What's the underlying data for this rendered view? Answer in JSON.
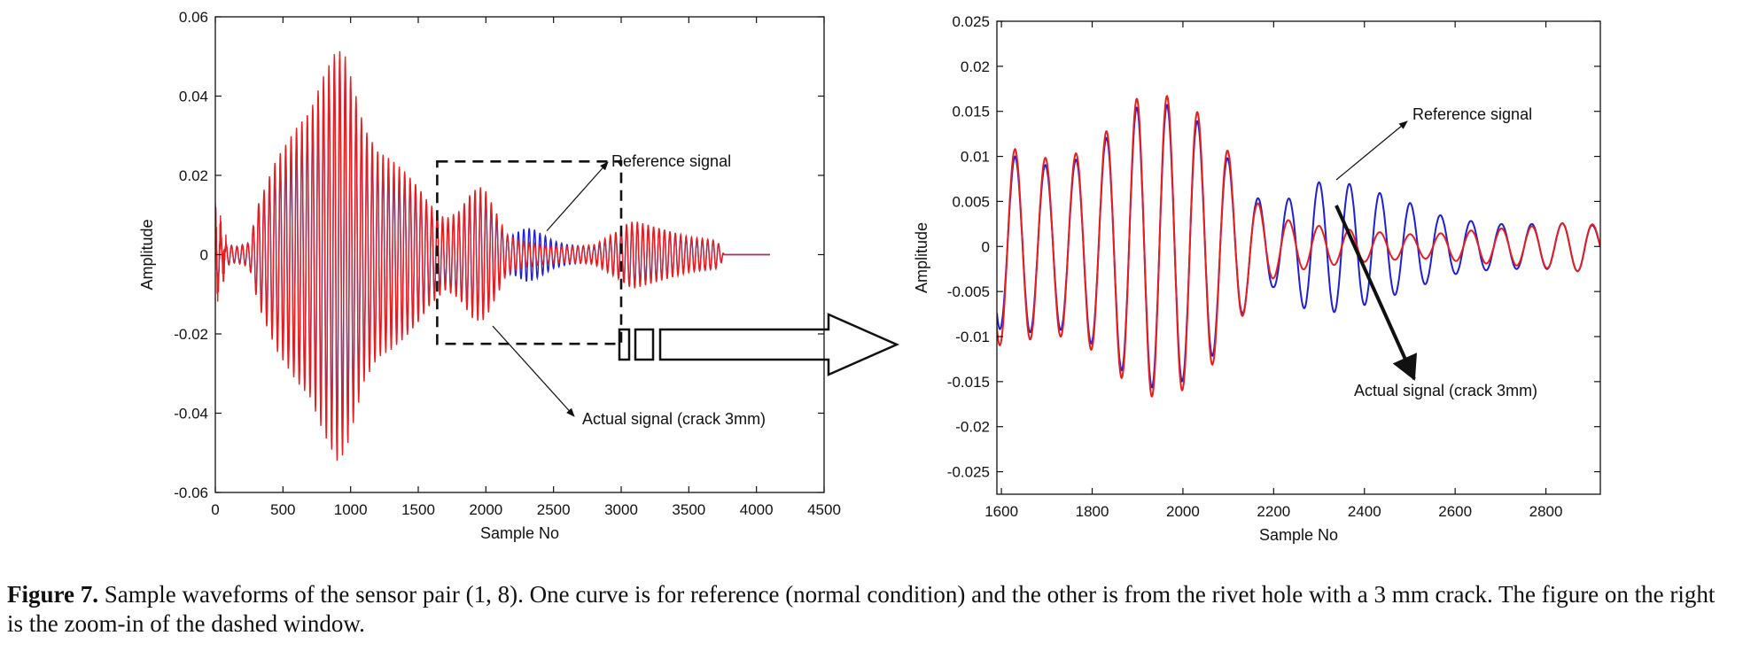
{
  "chart_data": [
    {
      "type": "line",
      "panel": "left",
      "title": "",
      "xlabel": "Sample No",
      "ylabel": "Amplitude",
      "xlim": [
        0,
        4500
      ],
      "ylim": [
        -0.06,
        0.06
      ],
      "x_ticks": [
        0,
        500,
        1000,
        1500,
        2000,
        2500,
        3000,
        3500,
        4000,
        4500
      ],
      "x_tick_labels": [
        "0",
        "500",
        "1000",
        "1500",
        "2000",
        "2500",
        "3000",
        "3500",
        "4000",
        "4500"
      ],
      "y_ticks": [
        -0.06,
        -0.04,
        -0.02,
        0,
        0.02,
        0.04,
        0.06
      ],
      "y_tick_labels": [
        "-0.06",
        "-0.04",
        "-0.02",
        "0",
        "0.02",
        "0.04",
        "0.06"
      ],
      "grid": false,
      "zoom_window": {
        "x": [
          1640,
          3000
        ],
        "y": [
          -0.0225,
          0.0235
        ]
      },
      "series": [
        {
          "name": "Reference signal",
          "color": "#1f1fd6",
          "period": 40,
          "envelope": {
            "x": [
              0,
              20,
              60,
              150,
              250,
              320,
              450,
              600,
              700,
              800,
              900,
              960,
              1040,
              1100,
              1200,
              1300,
              1400,
              1500,
              1580,
              1640,
              1700,
              1800,
              1900,
              1960,
              2000,
              2100,
              2150,
              2200,
              2250,
              2300,
              2350,
              2400,
              2450,
              2500,
              2600,
              2700,
              2800,
              2900,
              3000,
              3050,
              3100,
              3200,
              3300,
              3400,
              3500,
              3600,
              3700,
              3740,
              3760,
              4100
            ],
            "amp": [
              0.012,
              0.008,
              0.003,
              0.002,
              0.003,
              0.012,
              0.022,
              0.03,
              0.034,
              0.042,
              0.05,
              0.048,
              0.038,
              0.03,
              0.024,
              0.022,
              0.02,
              0.016,
              0.012,
              0.01,
              0.008,
              0.01,
              0.015,
              0.016,
              0.015,
              0.008,
              0.005,
              0.005,
              0.006,
              0.0068,
              0.0065,
              0.0055,
              0.0045,
              0.0035,
              0.0025,
              0.0022,
              0.002,
              0.004,
              0.006,
              0.0075,
              0.008,
              0.007,
              0.006,
              0.005,
              0.004,
              0.004,
              0.0035,
              0.002,
              0.0,
              0.0
            ]
          }
        },
        {
          "name": "Actual signal (crack 3mm)",
          "color": "#e61e1e",
          "period": 40,
          "envelope": {
            "x": [
              0,
              20,
              60,
              150,
              250,
              320,
              450,
              600,
              700,
              800,
              900,
              960,
              1040,
              1100,
              1200,
              1300,
              1400,
              1500,
              1580,
              1640,
              1700,
              1800,
              1900,
              1960,
              2000,
              2100,
              2150,
              2200,
              2250,
              2300,
              2350,
              2400,
              2450,
              2500,
              2600,
              2700,
              2800,
              2900,
              3000,
              3050,
              3100,
              3200,
              3300,
              3400,
              3500,
              3600,
              3700,
              3740,
              3760,
              4100
            ],
            "amp": [
              0.013,
              0.009,
              0.003,
              0.002,
              0.003,
              0.013,
              0.024,
              0.032,
              0.036,
              0.045,
              0.052,
              0.05,
              0.04,
              0.032,
              0.026,
              0.024,
              0.021,
              0.017,
              0.013,
              0.011,
              0.009,
              0.011,
              0.016,
              0.017,
              0.016,
              0.009,
              0.005,
              0.0042,
              0.0035,
              0.003,
              0.0028,
              0.0025,
              0.0022,
              0.0022,
              0.002,
              0.0022,
              0.0025,
              0.0045,
              0.0065,
              0.008,
              0.0085,
              0.0075,
              0.0065,
              0.0055,
              0.0045,
              0.004,
              0.0035,
              0.002,
              0.0,
              0.0
            ]
          }
        }
      ],
      "annotations": [
        {
          "text": "Reference signal",
          "points_to": {
            "x": 2450,
            "y": 0.006
          }
        },
        {
          "text": "Actual signal (crack 3mm)",
          "points_to": {
            "x": 2050,
            "y": -0.018
          }
        }
      ]
    },
    {
      "type": "line",
      "panel": "right",
      "title": "",
      "xlabel": "Sample No",
      "ylabel": "Amplitude",
      "xlim": [
        1590,
        2920
      ],
      "ylim": [
        -0.0275,
        0.025
      ],
      "x_ticks": [
        1600,
        1800,
        2000,
        2200,
        2400,
        2600,
        2800
      ],
      "x_tick_labels": [
        "1600",
        "1800",
        "2000",
        "2200",
        "2400",
        "2600",
        "2800"
      ],
      "y_ticks": [
        0.025,
        0.02,
        0.015,
        0.01,
        0.005,
        0,
        -0.005,
        -0.01,
        -0.015,
        -0.02,
        -0.025
      ],
      "y_tick_labels": [
        "0.025",
        "0.02",
        "0.015",
        "0.01",
        "0.005",
        "0",
        "-0.005",
        "-0.01",
        "-0.015",
        "-0.02",
        "-0.025"
      ],
      "grid": false,
      "series": [
        {
          "name": "Reference signal",
          "color": "#1f1fd6",
          "period": 67,
          "phase_x": 1630,
          "envelope": {
            "x": [
              1590,
              1630,
              1700,
              1760,
              1820,
              1850,
              1900,
              1960,
              2020,
              2060,
              2110,
              2160,
              2200,
              2240,
              2270,
              2340,
              2400,
              2460,
              2520,
              2580,
              2640,
              2700,
              2760,
              2820,
              2880,
              2920
            ],
            "amp": [
              0.009,
              0.01,
              0.009,
              0.0095,
              0.0115,
              0.013,
              0.0155,
              0.0158,
              0.0145,
              0.0125,
              0.009,
              0.0055,
              0.0045,
              0.0055,
              0.007,
              0.0073,
              0.0065,
              0.0055,
              0.0045,
              0.0032,
              0.0028,
              0.0025,
              0.0025,
              0.0025,
              0.0028,
              0.002
            ]
          }
        },
        {
          "name": "Actual signal (crack 3mm)",
          "color": "#e61e1e",
          "period": 67,
          "phase_x": 1630,
          "envelope": {
            "x": [
              1590,
              1630,
              1700,
              1760,
              1820,
              1850,
              1900,
              1960,
              2020,
              2060,
              2110,
              2160,
              2200,
              2240,
              2270,
              2340,
              2400,
              2460,
              2520,
              2580,
              2640,
              2700,
              2760,
              2820,
              2880,
              2920
            ],
            "amp": [
              0.011,
              0.0108,
              0.0098,
              0.0102,
              0.0122,
              0.0138,
              0.0165,
              0.0168,
              0.0155,
              0.0135,
              0.0098,
              0.005,
              0.0035,
              0.0028,
              0.0025,
              0.002,
              0.0017,
              0.0015,
              0.0013,
              0.0015,
              0.0018,
              0.002,
              0.0022,
              0.0025,
              0.0028,
              0.0022
            ]
          }
        }
      ],
      "annotations": [
        {
          "text": "Reference signal",
          "points_to": {
            "x": 2340,
            "y": 0.0165
          }
        },
        {
          "text": "Actual signal (crack 3mm)",
          "points_to": {
            "x": 2330,
            "y": 0.009
          }
        }
      ]
    }
  ],
  "caption": {
    "label": "Figure 7.",
    "text": " Sample waveforms of the sensor pair (1, 8). One curve is for reference (normal condition) and the other is from the rivet hole with a 3 mm crack. The figure on the right is the zoom-in of the dashed window."
  }
}
